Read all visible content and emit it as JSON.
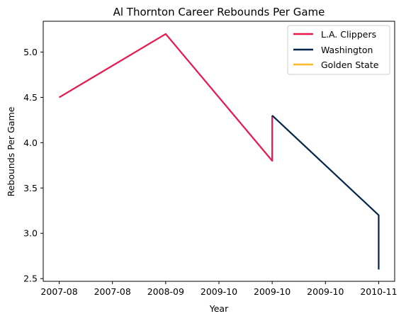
{
  "chart_data": {
    "type": "line",
    "title": "Al Thornton Career Rebounds Per Game",
    "xlabel": "Year",
    "ylabel": "Rebounds Per Game",
    "x_ticks": [
      "2007-08",
      "2007-08",
      "2008-09",
      "2009-10",
      "2009-10",
      "2009-10",
      "2010-11"
    ],
    "y_ticks": [
      "2.5",
      "3.0",
      "3.5",
      "4.0",
      "4.5",
      "5.0"
    ],
    "ylim": [
      2.47,
      5.34
    ],
    "xlim": [
      -0.15,
      3.15
    ],
    "grid": false,
    "legend_position": "top-right",
    "series": [
      {
        "name": "L.A. Clippers",
        "color": "#e8174c",
        "x": [
          0,
          1,
          2,
          2
        ],
        "values": [
          4.5,
          5.2,
          3.8,
          4.3
        ]
      },
      {
        "name": "Washington",
        "color": "#00264d",
        "x": [
          2,
          3,
          3
        ],
        "values": [
          4.3,
          3.2,
          2.6
        ]
      },
      {
        "name": "Golden State",
        "color": "#fdb927",
        "x": [],
        "values": []
      }
    ]
  }
}
